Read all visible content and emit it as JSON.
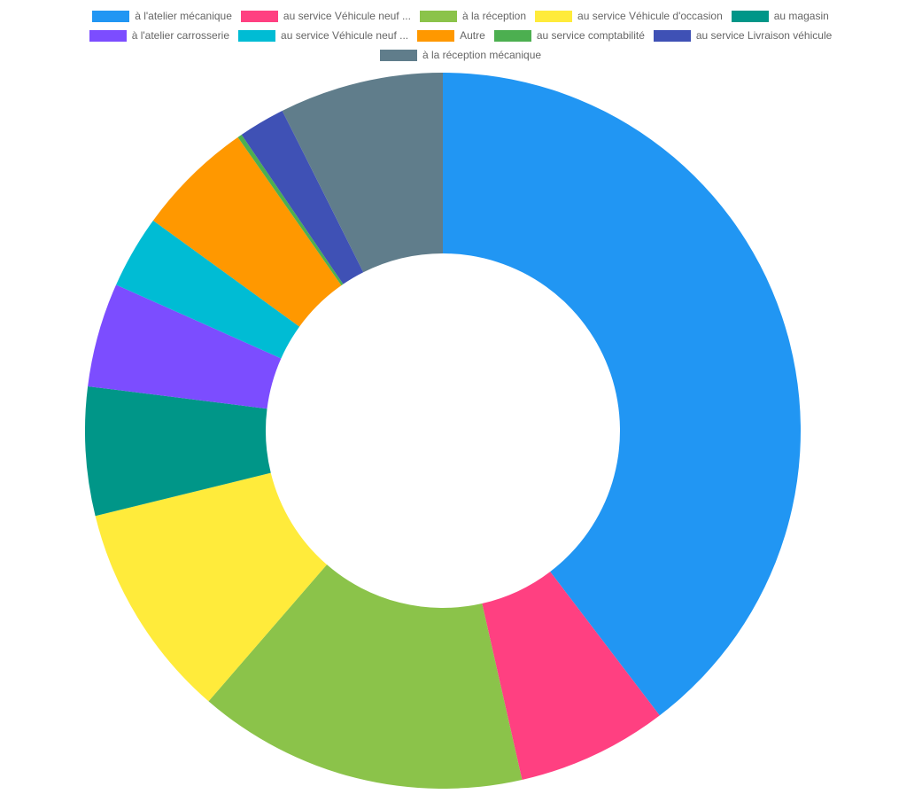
{
  "chart_data": {
    "type": "pie",
    "variant": "doughnut",
    "legend_position": "top",
    "unit": "percent (estimated)",
    "categories": [
      "à l'atelier mécanique",
      "au service Véhicule neuf ...",
      "à la réception",
      "au service Véhicule d'occasion",
      "au magasin",
      "à l'atelier carrosserie",
      "au service Véhicule neuf ...",
      "Autre",
      "au service comptabilité",
      "au service Livraison véhicule",
      "à la réception mécanique"
    ],
    "values": [
      39.6,
      6.8,
      14.9,
      9.8,
      5.8,
      4.7,
      3.3,
      5.3,
      0.2,
      2.1,
      7.4
    ],
    "colors": [
      "#2196F3",
      "#FF4081",
      "#8BC34A",
      "#FFEB3B",
      "#009688",
      "#7C4DFF",
      "#00BCD4",
      "#FF9800",
      "#4CAF50",
      "#3F51B5",
      "#607D8B"
    ]
  }
}
